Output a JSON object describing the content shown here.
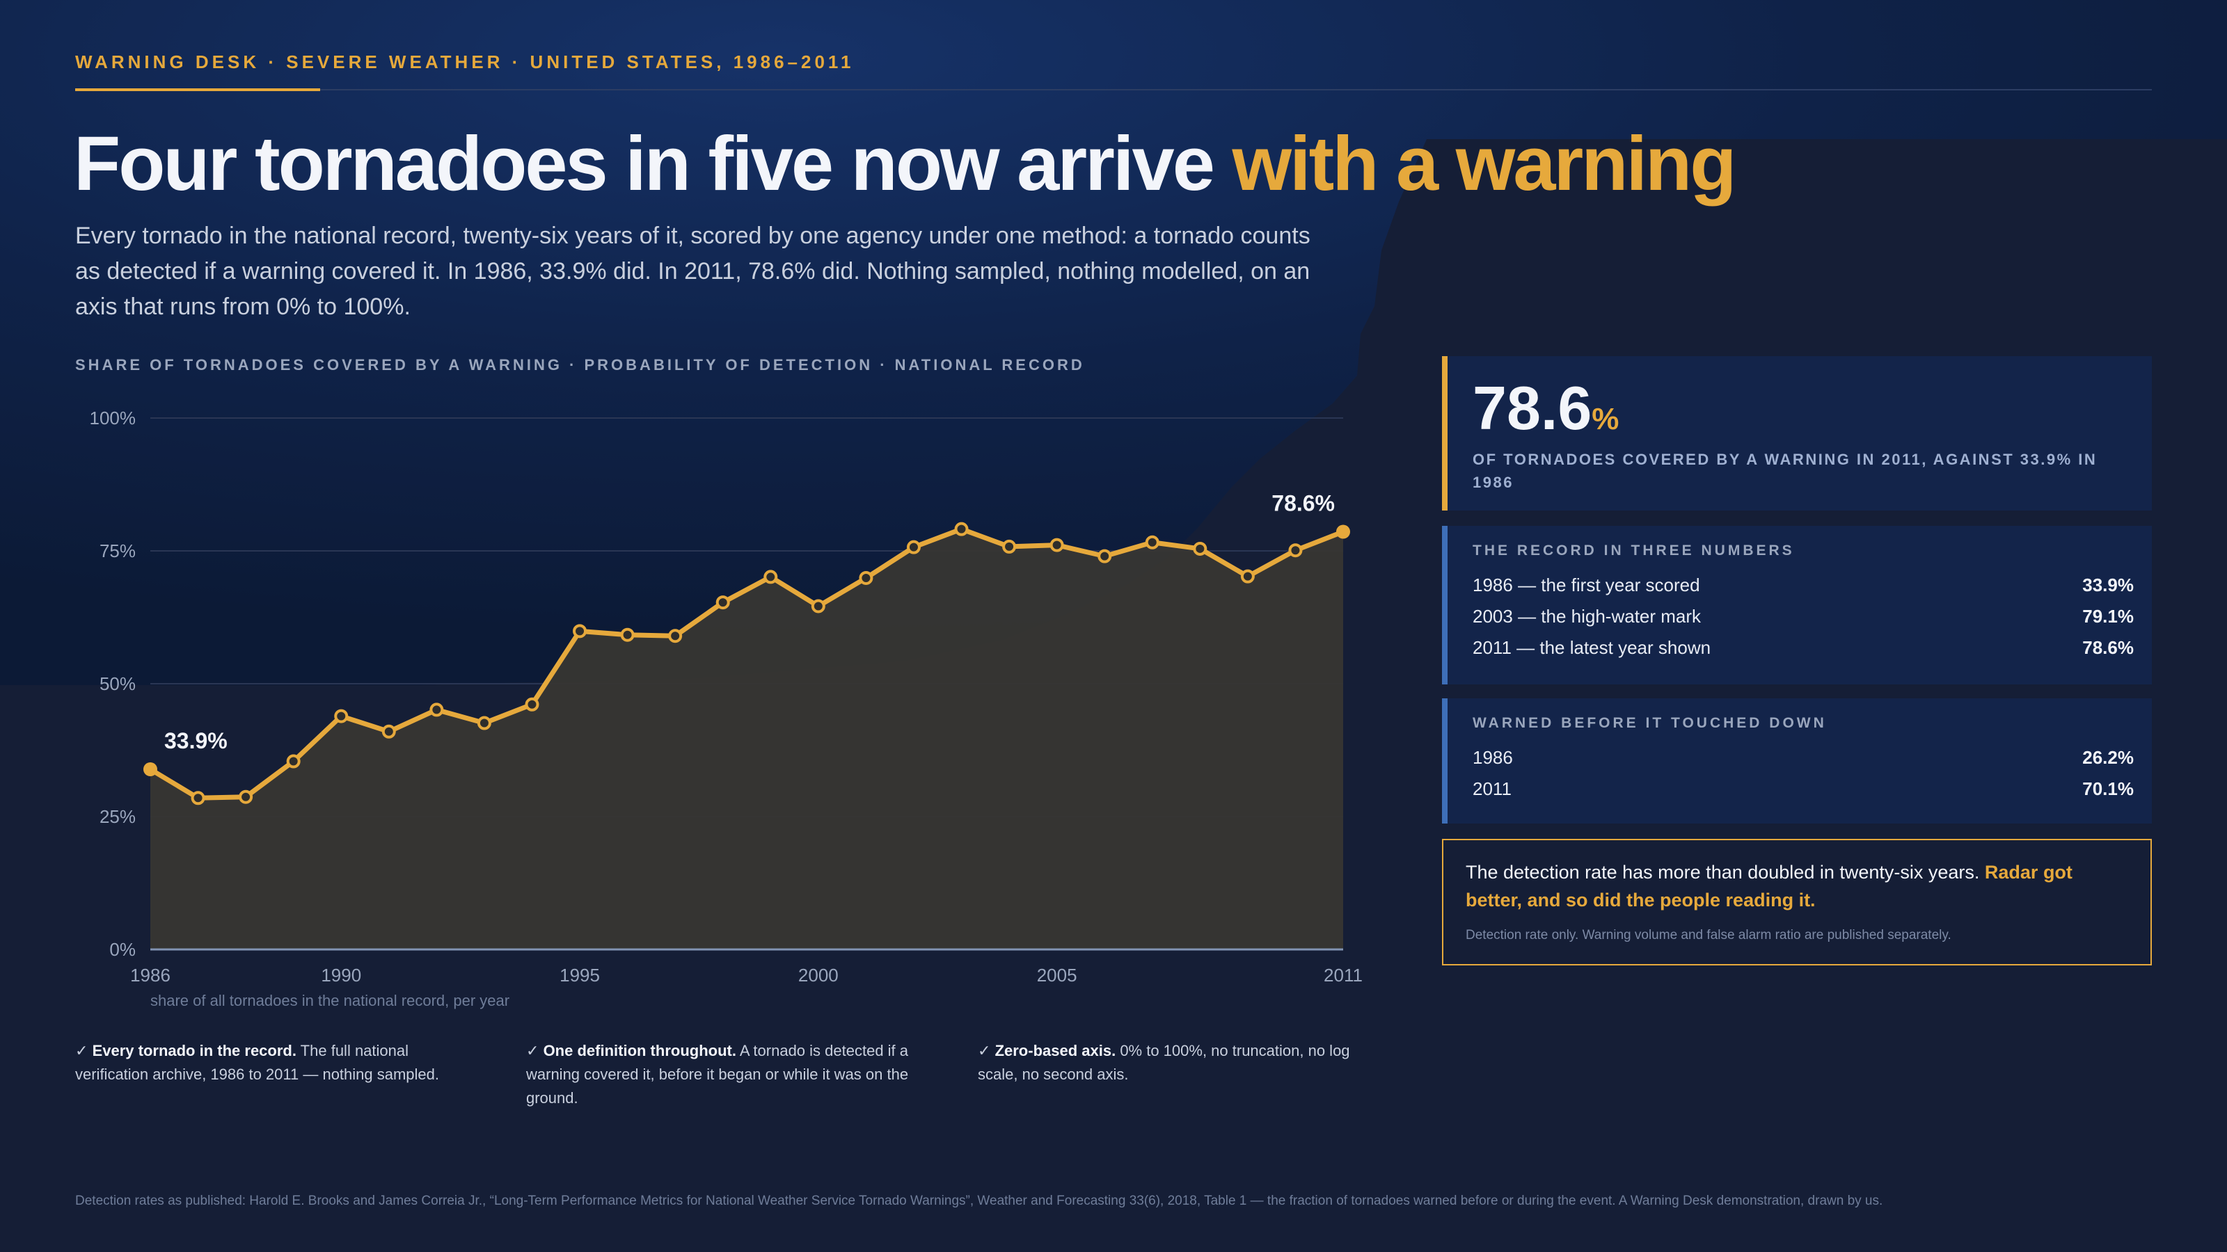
{
  "header": {
    "kicker": "WARNING DESK  ·  SEVERE WEATHER  ·  UNITED STATES, 1986–2011",
    "headline_main": "Four tornadoes in five now arrive ",
    "headline_accent": "with a warning",
    "dek": "Every tornado in the national record, twenty-six years of it, scored by one agency under one method: a tornado counts as detected if a warning covered it. In 1986, 33.9% did. In 2011, 78.6% did. Nothing sampled, nothing modelled, on an axis that runs from 0% to 100%.",
    "chart_label": "SHARE OF TORNADOES COVERED BY A WARNING  ·  PROBABILITY OF DETECTION  ·  NATIONAL RECORD"
  },
  "chart_data": {
    "type": "area",
    "title": "",
    "xlabel": "",
    "ylabel": "share of all tornadoes in the national record, per year",
    "x": [
      1986,
      1987,
      1988,
      1989,
      1990,
      1991,
      1992,
      1993,
      1994,
      1995,
      1996,
      1997,
      1998,
      1999,
      2000,
      2001,
      2002,
      2003,
      2004,
      2005,
      2006,
      2007,
      2008,
      2009,
      2010,
      2011
    ],
    "series": [
      {
        "name": "",
        "values": [
          33.9,
          28.5,
          28.7,
          35.4,
          43.9,
          41.0,
          45.1,
          42.6,
          46.1,
          59.9,
          59.2,
          59.0,
          65.3,
          70.1,
          64.6,
          69.9,
          75.7,
          79.1,
          75.8,
          76.1,
          74.0,
          76.6,
          75.4,
          70.2,
          75.1,
          78.6
        ]
      }
    ],
    "xlim": [
      1986,
      2011
    ],
    "ylim": [
      0,
      100
    ],
    "x_ticks": [
      "1986",
      "1990",
      "1995",
      "2000",
      "2005",
      "2011"
    ],
    "y_ticks": [
      "0%",
      "25%",
      "50%",
      "75%",
      "100%"
    ],
    "annotations": [
      {
        "x": 1986,
        "text": "33.9%"
      },
      {
        "x": 2011,
        "text": "78.6%"
      }
    ],
    "grid": true,
    "colors": {
      "line": "#e6a93c",
      "fill": "#373633",
      "grid": "#2a3654",
      "axis": "#8193b3"
    }
  },
  "checks": [
    {
      "bold": "Every tornado in the record.",
      "text": " The full national verification archive, 1986 to 2011 — nothing sampled."
    },
    {
      "bold": "One definition throughout.",
      "text": " A tornado is detected if a warning covered it, before it began or while it was on the ground."
    },
    {
      "bold": "Zero-based axis.",
      "text": " 0% to 100%, no truncation, no log scale, no second axis."
    }
  ],
  "check_mark": "✓",
  "stat": {
    "value": "78.6",
    "unit": "%",
    "caption": "OF TORNADOES COVERED BY A WARNING IN 2011, AGAINST 33.9% IN 1986"
  },
  "record": {
    "title": "THE RECORD IN THREE NUMBERS",
    "rows": [
      {
        "label": "1986 — the first year scored",
        "value": "33.9%"
      },
      {
        "label": "2003 — the high-water mark",
        "value": "79.1%"
      },
      {
        "label": "2011 — the latest year shown",
        "value": "78.6%"
      }
    ]
  },
  "touchdown": {
    "title": "WARNED BEFORE IT TOUCHED DOWN",
    "rows": [
      {
        "label": "1986",
        "value": "26.2%"
      },
      {
        "label": "2011",
        "value": "70.1%"
      }
    ]
  },
  "callout": {
    "text": "The detection rate has more than doubled in twenty-six years. ",
    "highlight": "Radar got better, and so did the people reading it.",
    "note": "Detection rate only. Warning volume and false alarm ratio are published separately."
  },
  "footer": "Detection rates as published: Harold E. Brooks and James Correia Jr., “Long-Term Performance Metrics for National Weather Service Tornado Warnings”, Weather and Forecasting 33(6), 2018, Table 1 — the fraction of tornadoes warned before or during the event. A Warning Desk demonstration, drawn by us."
}
